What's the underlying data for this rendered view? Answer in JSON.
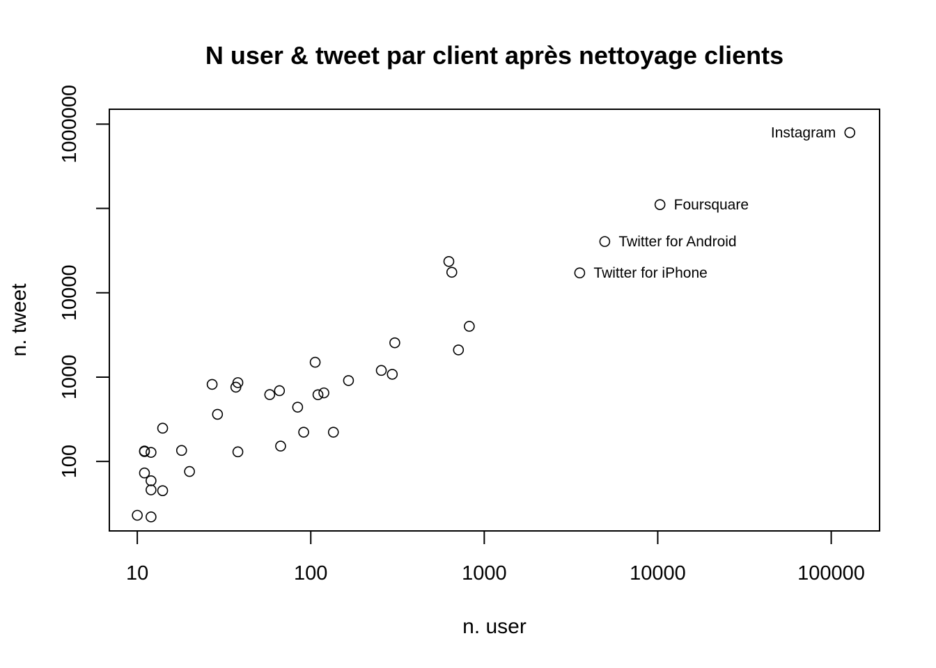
{
  "chart_data": {
    "type": "scatter",
    "title": "N user & tweet par client après nettoyage clients",
    "xlabel": "n. user",
    "ylabel": "n. tweet",
    "x_scale": "log",
    "y_scale": "log",
    "xlim": [
      6.9,
      190000
    ],
    "ylim": [
      15,
      1500000
    ],
    "x_ticks": [
      10,
      100,
      1000,
      10000,
      100000
    ],
    "x_tick_labels": [
      "10",
      "100",
      "1000",
      "10000",
      "100000"
    ],
    "y_ticks": [
      100,
      1000,
      10000,
      100000,
      1000000
    ],
    "y_tick_labels": [
      "100",
      "1000",
      "10000",
      "",
      "1000000"
    ],
    "grid": false,
    "points": [
      {
        "x": 10,
        "y": 23
      },
      {
        "x": 12,
        "y": 22
      },
      {
        "x": 12,
        "y": 46
      },
      {
        "x": 14,
        "y": 45
      },
      {
        "x": 11,
        "y": 73
      },
      {
        "x": 12,
        "y": 59
      },
      {
        "x": 11,
        "y": 133
      },
      {
        "x": 11,
        "y": 131
      },
      {
        "x": 12,
        "y": 128
      },
      {
        "x": 14,
        "y": 248
      },
      {
        "x": 18,
        "y": 135
      },
      {
        "x": 20,
        "y": 76
      },
      {
        "x": 27,
        "y": 820
      },
      {
        "x": 29,
        "y": 362
      },
      {
        "x": 37,
        "y": 760
      },
      {
        "x": 38,
        "y": 860
      },
      {
        "x": 38,
        "y": 130
      },
      {
        "x": 58,
        "y": 620
      },
      {
        "x": 66,
        "y": 690
      },
      {
        "x": 67,
        "y": 152
      },
      {
        "x": 84,
        "y": 440
      },
      {
        "x": 91,
        "y": 222
      },
      {
        "x": 106,
        "y": 1500
      },
      {
        "x": 110,
        "y": 618
      },
      {
        "x": 119,
        "y": 650
      },
      {
        "x": 135,
        "y": 222
      },
      {
        "x": 165,
        "y": 910
      },
      {
        "x": 255,
        "y": 1200
      },
      {
        "x": 295,
        "y": 1080
      },
      {
        "x": 305,
        "y": 2550
      },
      {
        "x": 625,
        "y": 23500
      },
      {
        "x": 650,
        "y": 17500
      },
      {
        "x": 710,
        "y": 2100
      },
      {
        "x": 820,
        "y": 4000
      },
      {
        "x": 3550,
        "y": 17200,
        "label": "Twitter for iPhone"
      },
      {
        "x": 4950,
        "y": 40500,
        "label": "Twitter for Android"
      },
      {
        "x": 10300,
        "y": 111000,
        "label": "Foursquare"
      },
      {
        "x": 128000,
        "y": 793000,
        "label": "Instagram"
      }
    ]
  }
}
